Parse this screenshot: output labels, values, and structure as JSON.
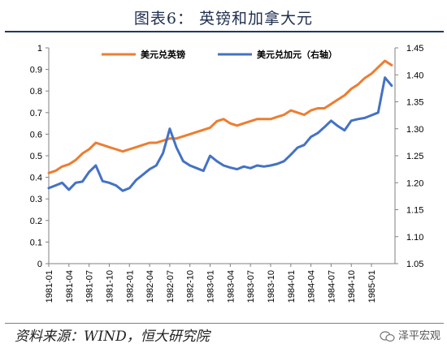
{
  "header": {
    "title": "图表6：  英镑和加拿大元"
  },
  "footer": {
    "source": "资料来源：WIND，恒大研究院",
    "watermark": "泽平宏观",
    "watermark_icon": "wechat-icon"
  },
  "colors": {
    "gbp": "#ED7D31",
    "cad": "#4472C4",
    "axis": "#808080",
    "text": "#000000"
  },
  "chart_data": {
    "type": "line",
    "title": "",
    "xlabel": "",
    "ylabel": "",
    "y2label": "",
    "x_ticks": [
      "1981-01",
      "1981-04",
      "1981-07",
      "1981-10",
      "1982-01",
      "1982-04",
      "1982-07",
      "1982-10",
      "1983-01",
      "1983-04",
      "1983-07",
      "1983-10",
      "1984-01",
      "1984-04",
      "1984-07",
      "1984-10",
      "1985-01"
    ],
    "ylim": [
      0,
      1
    ],
    "y_ticks": [
      "0",
      "0.1",
      "0.2",
      "0.3",
      "0.4",
      "0.5",
      "0.6",
      "0.7",
      "0.8",
      "0.9",
      "1"
    ],
    "y2lim": [
      1.05,
      1.45
    ],
    "y2_ticks": [
      "1.05",
      "1.10",
      "1.15",
      "1.20",
      "1.25",
      "1.30",
      "1.35",
      "1.40",
      "1.45"
    ],
    "grid": false,
    "legend_position": "top",
    "series": [
      {
        "name": "美元兑英镑",
        "axis": "left",
        "color": "#ED7D31",
        "points": [
          [
            "1981-01",
            0.42
          ],
          [
            "1981-02",
            0.43
          ],
          [
            "1981-03",
            0.45
          ],
          [
            "1981-04",
            0.46
          ],
          [
            "1981-05",
            0.48
          ],
          [
            "1981-06",
            0.51
          ],
          [
            "1981-07",
            0.53
          ],
          [
            "1981-08",
            0.56
          ],
          [
            "1981-09",
            0.55
          ],
          [
            "1981-10",
            0.54
          ],
          [
            "1981-11",
            0.53
          ],
          [
            "1981-12",
            0.52
          ],
          [
            "1982-01",
            0.53
          ],
          [
            "1982-02",
            0.54
          ],
          [
            "1982-03",
            0.55
          ],
          [
            "1982-04",
            0.56
          ],
          [
            "1982-05",
            0.56
          ],
          [
            "1982-06",
            0.57
          ],
          [
            "1982-07",
            0.58
          ],
          [
            "1982-08",
            0.58
          ],
          [
            "1982-09",
            0.59
          ],
          [
            "1982-10",
            0.6
          ],
          [
            "1982-11",
            0.61
          ],
          [
            "1982-12",
            0.62
          ],
          [
            "1983-01",
            0.63
          ],
          [
            "1983-02",
            0.66
          ],
          [
            "1983-03",
            0.67
          ],
          [
            "1983-04",
            0.65
          ],
          [
            "1983-05",
            0.64
          ],
          [
            "1983-06",
            0.65
          ],
          [
            "1983-07",
            0.66
          ],
          [
            "1983-08",
            0.67
          ],
          [
            "1983-09",
            0.67
          ],
          [
            "1983-10",
            0.67
          ],
          [
            "1983-11",
            0.68
          ],
          [
            "1983-12",
            0.69
          ],
          [
            "1984-01",
            0.71
          ],
          [
            "1984-02",
            0.7
          ],
          [
            "1984-03",
            0.69
          ],
          [
            "1984-04",
            0.71
          ],
          [
            "1984-05",
            0.72
          ],
          [
            "1984-06",
            0.72
          ],
          [
            "1984-07",
            0.74
          ],
          [
            "1984-08",
            0.76
          ],
          [
            "1984-09",
            0.78
          ],
          [
            "1984-10",
            0.81
          ],
          [
            "1984-11",
            0.83
          ],
          [
            "1984-12",
            0.86
          ],
          [
            "1985-01",
            0.88
          ],
          [
            "1985-02",
            0.91
          ],
          [
            "1985-03",
            0.94
          ],
          [
            "1985-04",
            0.92
          ]
        ]
      },
      {
        "name": "美元兑加元（右轴）",
        "axis": "right",
        "color": "#4472C4",
        "points": [
          [
            "1981-01",
            1.19
          ],
          [
            "1981-02",
            1.195
          ],
          [
            "1981-03",
            1.2
          ],
          [
            "1981-04",
            1.187
          ],
          [
            "1981-05",
            1.2
          ],
          [
            "1981-06",
            1.202
          ],
          [
            "1981-07",
            1.22
          ],
          [
            "1981-08",
            1.232
          ],
          [
            "1981-09",
            1.203
          ],
          [
            "1981-10",
            1.2
          ],
          [
            "1981-11",
            1.195
          ],
          [
            "1981-12",
            1.185
          ],
          [
            "1982-01",
            1.19
          ],
          [
            "1982-02",
            1.205
          ],
          [
            "1982-03",
            1.215
          ],
          [
            "1982-04",
            1.225
          ],
          [
            "1982-05",
            1.232
          ],
          [
            "1982-06",
            1.255
          ],
          [
            "1982-07",
            1.3
          ],
          [
            "1982-08",
            1.265
          ],
          [
            "1982-09",
            1.24
          ],
          [
            "1982-10",
            1.232
          ],
          [
            "1982-11",
            1.227
          ],
          [
            "1982-12",
            1.222
          ],
          [
            "1983-01",
            1.25
          ],
          [
            "1983-02",
            1.24
          ],
          [
            "1983-03",
            1.232
          ],
          [
            "1983-04",
            1.228
          ],
          [
            "1983-05",
            1.225
          ],
          [
            "1983-06",
            1.23
          ],
          [
            "1983-07",
            1.227
          ],
          [
            "1983-08",
            1.232
          ],
          [
            "1983-09",
            1.23
          ],
          [
            "1983-10",
            1.232
          ],
          [
            "1983-11",
            1.235
          ],
          [
            "1983-12",
            1.24
          ],
          [
            "1984-01",
            1.252
          ],
          [
            "1984-02",
            1.265
          ],
          [
            "1984-03",
            1.27
          ],
          [
            "1984-04",
            1.285
          ],
          [
            "1984-05",
            1.292
          ],
          [
            "1984-06",
            1.303
          ],
          [
            "1984-07",
            1.315
          ],
          [
            "1984-08",
            1.305
          ],
          [
            "1984-09",
            1.297
          ],
          [
            "1984-10",
            1.315
          ],
          [
            "1984-11",
            1.318
          ],
          [
            "1984-12",
            1.32
          ],
          [
            "1985-01",
            1.325
          ],
          [
            "1985-02",
            1.33
          ],
          [
            "1985-03",
            1.395
          ],
          [
            "1985-04",
            1.38
          ]
        ]
      }
    ]
  }
}
